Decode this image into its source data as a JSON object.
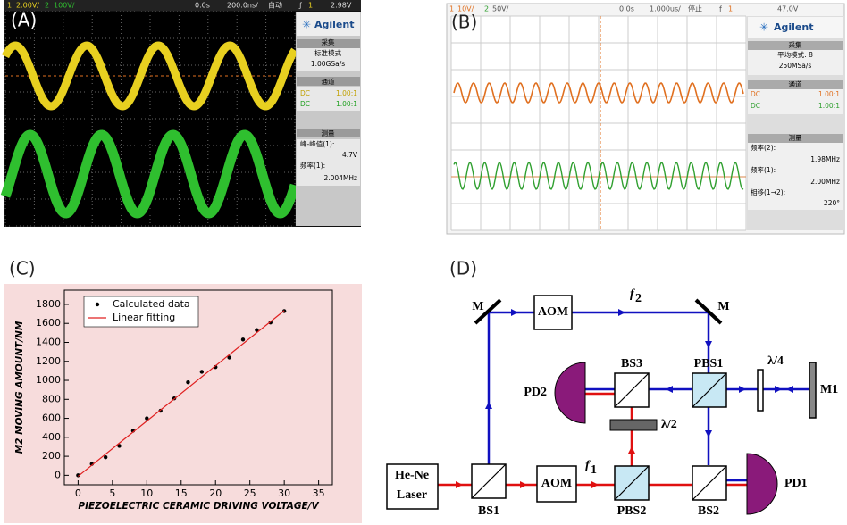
{
  "panels": {
    "a": {
      "label": "(A)",
      "topbar": [
        "1",
        "2.00V/",
        "2",
        "100V/",
        "0.0s",
        "200.0ns/",
        "自动",
        "ƒ",
        "1",
        "2.98V"
      ],
      "brand": "Agilent",
      "sidebar": [
        "采集",
        "标准模式",
        "1.00GSa/s",
        "通道",
        "DC",
        "1.00:1",
        "DC",
        "1.00:1",
        "测量",
        "峰-峰值(1):",
        "4.7V",
        "频率(1):",
        "2.004MHz"
      ]
    },
    "b": {
      "label": "(B)",
      "topbar": [
        "1",
        "10V/",
        "2",
        "50V/",
        "0.0s",
        "1.000us/",
        "停止",
        "ƒ",
        "1",
        "47.0V"
      ],
      "brand": "Agilent",
      "sidebar": [
        "采集",
        "平均模式: 8",
        "250MSa/s",
        "通道",
        "DC",
        "1.00:1",
        "DC",
        "1.00:1",
        "测量",
        "频率(2):",
        "1.98MHz",
        "频率(1):",
        "2.00MHz",
        "相移(1→2):",
        "220°"
      ]
    },
    "c": {
      "label": "(C)"
    },
    "d": {
      "label": "(D)",
      "labels": [
        "M",
        "AOM",
        "M",
        "PD2",
        "BS3",
        "PBS1",
        "λ/4",
        "M1",
        "λ/2",
        "He-Ne",
        "Laser",
        "BS1",
        "AOM",
        "PBS2",
        "BS2",
        "PD1"
      ],
      "f2": {
        "label": "f",
        "sub": "2"
      },
      "f1": {
        "label": "f",
        "sub": "1"
      }
    }
  },
  "chart_data": {
    "type": "scatter",
    "xlabel": "PIEZOELECTRIC CERAMIC DRIVING VOLTAGE/V",
    "ylabel": "M2 MOVING AMOUNT/NM",
    "series": [
      {
        "name": "Calculated data",
        "type": "scatter",
        "color": "#000000",
        "x": [
          0,
          2,
          4,
          6,
          8,
          10,
          12,
          14,
          16,
          18,
          20,
          22,
          24,
          26,
          28,
          30
        ],
        "values": [
          0,
          120,
          190,
          310,
          470,
          600,
          680,
          810,
          980,
          1090,
          1140,
          1240,
          1430,
          1530,
          1610,
          1730
        ]
      },
      {
        "name": "Linear fitting",
        "type": "line",
        "color": "#e02020",
        "x": [
          0,
          30
        ],
        "values": [
          -10,
          1735
        ]
      }
    ],
    "xlim": [
      -2,
      37
    ],
    "ylim": [
      -100,
      1950
    ],
    "xticks": [
      0,
      5,
      10,
      15,
      20,
      25,
      30,
      35
    ],
    "yticks": [
      0,
      200,
      400,
      600,
      800,
      1000,
      1200,
      1400,
      1600,
      1800
    ],
    "legend": "upper left"
  }
}
